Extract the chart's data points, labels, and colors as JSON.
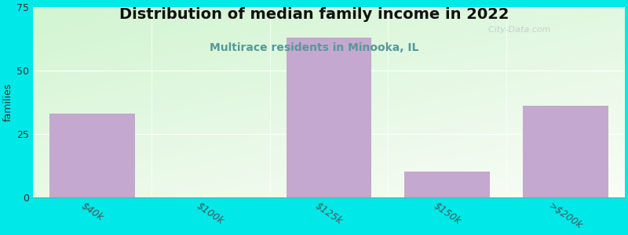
{
  "title": "Distribution of median family income in 2022",
  "subtitle": "Multirace residents in Minooka, IL",
  "categories": [
    "$40k",
    "$100k",
    "$125k",
    "$150k",
    ">$200k"
  ],
  "values": [
    33,
    0,
    63,
    10,
    36
  ],
  "bar_color": "#c4a8d0",
  "bar_edge_color": "#b090c0",
  "ylabel": "families",
  "ylim": [
    0,
    75
  ],
  "yticks": [
    0,
    25,
    50,
    75
  ],
  "bg_color": "#00e8e8",
  "title_fontsize": 14,
  "subtitle_fontsize": 10,
  "subtitle_color": "#559999",
  "watermark": "  City-Data.com",
  "watermark_color": "#bbcccc",
  "bar_width": 0.72
}
